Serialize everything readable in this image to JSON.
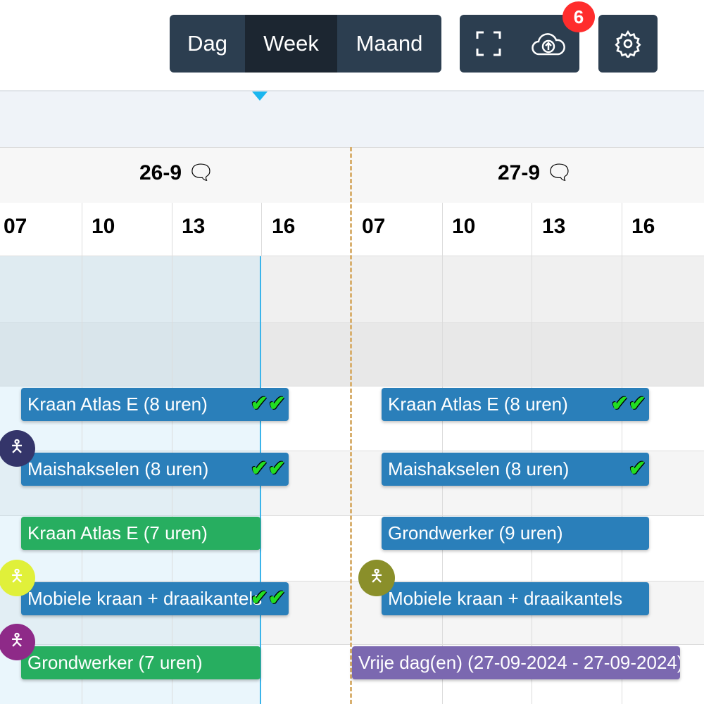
{
  "toolbar": {
    "views": [
      "Dag",
      "Week",
      "Maand"
    ],
    "active_view": "Week",
    "notification_count": "6",
    "icons": [
      "fullscreen-icon",
      "cloud-upload-icon",
      "gear-icon"
    ]
  },
  "days": [
    {
      "date": "26-9",
      "hours": [
        "07",
        "10",
        "13",
        "16"
      ]
    },
    {
      "date": "27-9",
      "hours": [
        "07",
        "10",
        "13",
        "16"
      ]
    }
  ],
  "events_day1": [
    {
      "label": "Kraan Atlas E (8 uren)",
      "color": "#2a7fba",
      "check": "✔✔"
    },
    {
      "label": "Maishakselen (8 uren)",
      "color": "#2a7fba",
      "check": "✔✔"
    },
    {
      "label": "Kraan Atlas E (7 uren)",
      "color": "#27ae60"
    },
    {
      "label": "Mobiele kraan + draaikantels",
      "color": "#2a7fba",
      "check": "✔✔"
    },
    {
      "label": "Grondwerker (7 uren)",
      "color": "#27ae60"
    }
  ],
  "events_day2": [
    {
      "label": "Kraan Atlas E (8 uren)",
      "color": "#2a7fba",
      "check": "✔✔"
    },
    {
      "label": "Maishakselen (8 uren)",
      "color": "#2a7fba",
      "check": "✔"
    },
    {
      "label": "Grondwerker (9 uren)",
      "color": "#2a7fba"
    },
    {
      "label": "Mobiele kraan + draaikantels",
      "color": "#2a7fba"
    },
    {
      "label": "Vrije dag(en) (27-09-2024 - 27-09-2024)",
      "color": "#7b68b0"
    }
  ],
  "avatar_colors": [
    "#34356a",
    "#e0f03a",
    "#8e2a88",
    "#8a8f2a"
  ]
}
